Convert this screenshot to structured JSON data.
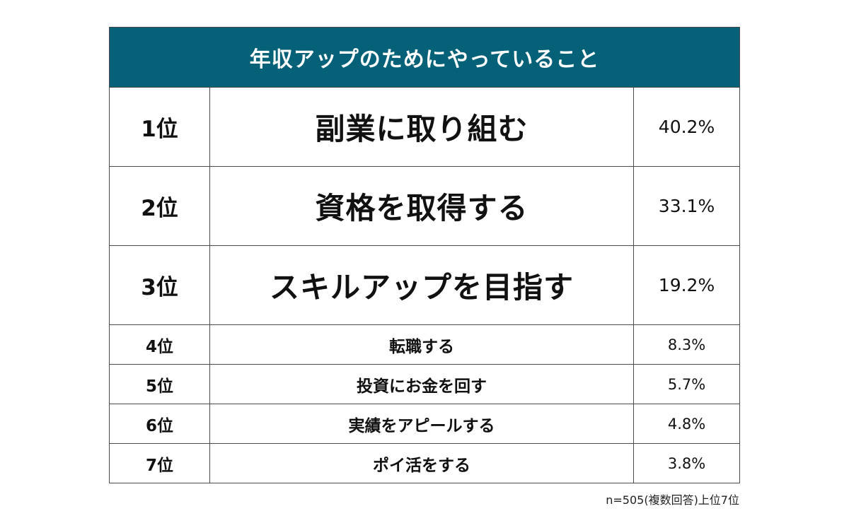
{
  "title": "年収アップのためにやっていること",
  "colors": {
    "header_bg": "#046178",
    "header_text": "#ffffff",
    "border": "#4a4a4a"
  },
  "rows": [
    {
      "rank": "1位",
      "item": "副業に取り組む",
      "pct": "40.2%"
    },
    {
      "rank": "2位",
      "item": "資格を取得する",
      "pct": "33.1%"
    },
    {
      "rank": "3位",
      "item": "スキルアップを目指す",
      "pct": "19.2%"
    },
    {
      "rank": "4位",
      "item": "転職する",
      "pct": "8.3%"
    },
    {
      "rank": "5位",
      "item": "投資にお金を回す",
      "pct": "5.7%"
    },
    {
      "rank": "6位",
      "item": "実績をアピールする",
      "pct": "4.8%"
    },
    {
      "rank": "7位",
      "item": "ポイ活をする",
      "pct": "3.8%"
    }
  ],
  "note": "n=505(複数回答)上位7位"
}
